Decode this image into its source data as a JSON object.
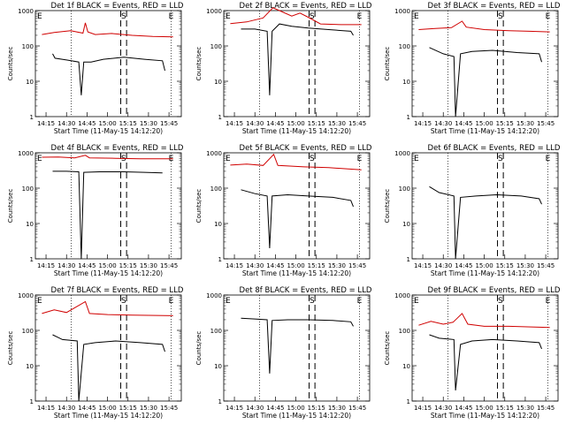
{
  "chart_data": [
    {
      "type": "line",
      "title": "Det 1f BLACK = Events, RED = LLD",
      "xlabel": "Start Time (11-May-15 14:12:20)",
      "ylabel": "Counts/sec",
      "yscale": "log",
      "ylim": [
        1,
        1000
      ],
      "xlim": [
        "14:15",
        "15:50"
      ],
      "x_ticks": [
        "14:15",
        "14:30",
        "14:45",
        "15:00",
        "15:15",
        "15:30",
        "15:45"
      ],
      "y_ticks": [
        "1",
        "10",
        "100",
        "1000"
      ],
      "markers": [
        "E",
        "S",
        "E"
      ],
      "series": [
        {
          "name": "LLD",
          "color": "#d00000",
          "values": [
            [
              14.2,
              210
            ],
            [
              14.35,
              240
            ],
            [
              14.55,
              270
            ],
            [
              14.7,
              230
            ],
            [
              14.73,
              450
            ],
            [
              14.76,
              250
            ],
            [
              14.85,
              210
            ],
            [
              15.05,
              225
            ],
            [
              15.3,
              200
            ],
            [
              15.55,
              185
            ],
            [
              15.8,
              180
            ]
          ]
        },
        {
          "name": "Events",
          "color": "#000000",
          "values": [
            [
              14.33,
              60
            ],
            [
              14.36,
              45
            ],
            [
              14.5,
              40
            ],
            [
              14.65,
              35
            ],
            [
              14.68,
              4
            ],
            [
              14.71,
              35
            ],
            [
              14.8,
              35
            ],
            [
              14.95,
              42
            ],
            [
              15.2,
              48
            ],
            [
              15.45,
              42
            ],
            [
              15.67,
              38
            ],
            [
              15.7,
              20
            ]
          ]
        }
      ]
    },
    {
      "type": "line",
      "title": "Det 2f BLACK = Events, RED = LLD",
      "xlabel": "Start Time (11-May-15 14:12:20)",
      "ylabel": "Counts/sec",
      "yscale": "log",
      "ylim": [
        1,
        1000
      ],
      "xlim": [
        "14:15",
        "15:50"
      ],
      "x_ticks": [
        "14:15",
        "14:30",
        "14:45",
        "15:00",
        "15:15",
        "15:30",
        "15:45"
      ],
      "y_ticks": [
        "1",
        "10",
        "100",
        "1000"
      ],
      "markers": [
        "E",
        "S",
        "E"
      ],
      "series": [
        {
          "name": "LLD",
          "color": "#d00000",
          "values": [
            [
              14.2,
              430
            ],
            [
              14.4,
              480
            ],
            [
              14.6,
              620
            ],
            [
              14.72,
              1200
            ],
            [
              14.8,
              1000
            ],
            [
              14.95,
              700
            ],
            [
              15.05,
              850
            ],
            [
              15.15,
              650
            ],
            [
              15.3,
              420
            ],
            [
              15.55,
              400
            ],
            [
              15.8,
              400
            ]
          ]
        },
        {
          "name": "Events",
          "color": "#000000",
          "values": [
            [
              14.33,
              300
            ],
            [
              14.5,
              300
            ],
            [
              14.65,
              260
            ],
            [
              14.68,
              4
            ],
            [
              14.71,
              260
            ],
            [
              14.8,
              420
            ],
            [
              14.95,
              360
            ],
            [
              15.15,
              320
            ],
            [
              15.4,
              290
            ],
            [
              15.67,
              260
            ],
            [
              15.7,
              200
            ]
          ]
        }
      ]
    },
    {
      "type": "line",
      "title": "Det 3f BLACK = Events, RED = LLD",
      "xlabel": "Start Time (11-May-15 14:12:20)",
      "ylabel": "Counts/sec",
      "yscale": "log",
      "ylim": [
        1,
        1000
      ],
      "xlim": [
        "14:15",
        "15:50"
      ],
      "x_ticks": [
        "14:15",
        "14:30",
        "14:45",
        "15:00",
        "15:15",
        "15:30",
        "15:45"
      ],
      "y_ticks": [
        "1",
        "10",
        "100",
        "1000"
      ],
      "markers": [
        "E",
        "S",
        "E"
      ],
      "series": [
        {
          "name": "LLD",
          "color": "#d00000",
          "values": [
            [
              14.2,
              290
            ],
            [
              14.4,
              310
            ],
            [
              14.6,
              330
            ],
            [
              14.73,
              500
            ],
            [
              14.78,
              340
            ],
            [
              15.0,
              290
            ],
            [
              15.3,
              270
            ],
            [
              15.55,
              260
            ],
            [
              15.8,
              250
            ]
          ]
        },
        {
          "name": "Events",
          "color": "#000000",
          "values": [
            [
              14.33,
              90
            ],
            [
              14.5,
              60
            ],
            [
              14.63,
              50
            ],
            [
              14.65,
              1
            ],
            [
              14.71,
              60
            ],
            [
              14.85,
              70
            ],
            [
              15.1,
              75
            ],
            [
              15.4,
              65
            ],
            [
              15.67,
              60
            ],
            [
              15.7,
              35
            ]
          ]
        }
      ]
    },
    {
      "type": "line",
      "title": "Det 4f BLACK = Events, RED = LLD",
      "xlabel": "Start Time (11-May-15 14:12:20)",
      "ylabel": "Counts/sec",
      "yscale": "log",
      "ylim": [
        1,
        1000
      ],
      "xlim": [
        "14:15",
        "15:50"
      ],
      "x_ticks": [
        "14:15",
        "14:30",
        "14:45",
        "15:00",
        "15:15",
        "15:30",
        "15:45"
      ],
      "y_ticks": [
        "1",
        "10",
        "100",
        "1000"
      ],
      "markers": [
        "E",
        "S",
        "E"
      ],
      "series": [
        {
          "name": "LLD",
          "color": "#d00000",
          "values": [
            [
              14.2,
              750
            ],
            [
              14.4,
              760
            ],
            [
              14.6,
              720
            ],
            [
              14.73,
              850
            ],
            [
              14.78,
              720
            ],
            [
              15.1,
              700
            ],
            [
              15.4,
              680
            ],
            [
              15.8,
              680
            ]
          ]
        },
        {
          "name": "Events",
          "color": "#000000",
          "values": [
            [
              14.33,
              300
            ],
            [
              14.5,
              300
            ],
            [
              14.65,
              290
            ],
            [
              14.68,
              1
            ],
            [
              14.71,
              280
            ],
            [
              14.9,
              290
            ],
            [
              15.2,
              290
            ],
            [
              15.45,
              280
            ],
            [
              15.67,
              270
            ]
          ]
        }
      ]
    },
    {
      "type": "line",
      "title": "Det 5f BLACK = Events, RED = LLD",
      "xlabel": "Start Time (11-May-15 14:12:20)",
      "ylabel": "Counts/sec",
      "yscale": "log",
      "ylim": [
        1,
        1000
      ],
      "xlim": [
        "14:15",
        "15:50"
      ],
      "x_ticks": [
        "14:15",
        "14:30",
        "14:45",
        "15:00",
        "15:15",
        "15:30",
        "15:45"
      ],
      "y_ticks": [
        "1",
        "10",
        "100",
        "1000"
      ],
      "markers": [
        "E",
        "S",
        "E"
      ],
      "series": [
        {
          "name": "LLD",
          "color": "#d00000",
          "values": [
            [
              14.2,
              450
            ],
            [
              14.4,
              480
            ],
            [
              14.6,
              440
            ],
            [
              14.73,
              900
            ],
            [
              14.78,
              440
            ],
            [
              15.1,
              400
            ],
            [
              15.4,
              380
            ],
            [
              15.8,
              330
            ]
          ]
        },
        {
          "name": "Events",
          "color": "#000000",
          "values": [
            [
              14.33,
              90
            ],
            [
              14.5,
              70
            ],
            [
              14.65,
              60
            ],
            [
              14.68,
              2
            ],
            [
              14.71,
              60
            ],
            [
              14.9,
              65
            ],
            [
              15.15,
              60
            ],
            [
              15.45,
              55
            ],
            [
              15.67,
              45
            ],
            [
              15.7,
              30
            ]
          ]
        }
      ]
    },
    {
      "type": "line",
      "title": "Det 6f BLACK = Events, RED = LLD",
      "xlabel": "Start Time (11-May-15 14:12:20)",
      "ylabel": "Counts/sec",
      "yscale": "log",
      "ylim": [
        1,
        1000
      ],
      "xlim": [
        "14:15",
        "15:50"
      ],
      "x_ticks": [
        "14:15",
        "14:30",
        "14:45",
        "15:00",
        "15:15",
        "15:30",
        "15:45"
      ],
      "y_ticks": [
        "1",
        "10",
        "100",
        "1000"
      ],
      "markers": [
        "E",
        "S",
        "E"
      ],
      "series": [
        {
          "name": "Events",
          "color": "#000000",
          "values": [
            [
              14.33,
              110
            ],
            [
              14.45,
              75
            ],
            [
              14.63,
              60
            ],
            [
              14.65,
              1
            ],
            [
              14.71,
              55
            ],
            [
              14.9,
              60
            ],
            [
              15.15,
              65
            ],
            [
              15.45,
              60
            ],
            [
              15.67,
              50
            ],
            [
              15.7,
              35
            ]
          ]
        }
      ]
    },
    {
      "type": "line",
      "title": "Det 7f BLACK = Events, RED = LLD",
      "xlabel": "Start Time (11-May-15 14:12:20)",
      "ylabel": "Counts/sec",
      "yscale": "log",
      "ylim": [
        1,
        1000
      ],
      "xlim": [
        "14:15",
        "15:50"
      ],
      "x_ticks": [
        "14:15",
        "14:30",
        "14:45",
        "15:00",
        "15:15",
        "15:30",
        "15:45"
      ],
      "y_ticks": [
        "1",
        "10",
        "100",
        "1000"
      ],
      "markers": [
        "E",
        "S",
        "E"
      ],
      "series": [
        {
          "name": "LLD",
          "color": "#d00000",
          "values": [
            [
              14.2,
              300
            ],
            [
              14.35,
              380
            ],
            [
              14.5,
              320
            ],
            [
              14.73,
              650
            ],
            [
              14.78,
              300
            ],
            [
              15.0,
              280
            ],
            [
              15.3,
              270
            ],
            [
              15.8,
              260
            ]
          ]
        },
        {
          "name": "Events",
          "color": "#000000",
          "values": [
            [
              14.33,
              75
            ],
            [
              14.45,
              55
            ],
            [
              14.63,
              50
            ],
            [
              14.65,
              1
            ],
            [
              14.71,
              40
            ],
            [
              14.85,
              45
            ],
            [
              15.1,
              50
            ],
            [
              15.4,
              45
            ],
            [
              15.67,
              40
            ],
            [
              15.7,
              25
            ]
          ]
        }
      ]
    },
    {
      "type": "line",
      "title": "Det 8f BLACK = Events, RED = LLD",
      "xlabel": "Start Time (11-May-15 14:12:20)",
      "ylabel": "Counts/sec",
      "yscale": "log",
      "ylim": [
        1,
        1000
      ],
      "xlim": [
        "14:15",
        "15:50"
      ],
      "x_ticks": [
        "14:15",
        "14:30",
        "14:45",
        "15:00",
        "15:15",
        "15:30",
        "15:45"
      ],
      "y_ticks": [
        "1",
        "10",
        "100",
        "1000"
      ],
      "markers": [
        "E",
        "S",
        "E"
      ],
      "series": [
        {
          "name": "Events",
          "color": "#000000",
          "values": [
            [
              14.33,
              220
            ],
            [
              14.5,
              210
            ],
            [
              14.65,
              200
            ],
            [
              14.68,
              6
            ],
            [
              14.71,
              190
            ],
            [
              14.9,
              200
            ],
            [
              15.15,
              200
            ],
            [
              15.45,
              190
            ],
            [
              15.67,
              175
            ],
            [
              15.7,
              130
            ]
          ]
        }
      ]
    },
    {
      "type": "line",
      "title": "Det 9f BLACK = Events, RED = LLD",
      "xlabel": "Start Time (11-May-15 14:12:20)",
      "ylabel": "Counts/sec",
      "yscale": "log",
      "ylim": [
        1,
        1000
      ],
      "xlim": [
        "14:15",
        "15:50"
      ],
      "x_ticks": [
        "14:15",
        "14:30",
        "14:45",
        "15:00",
        "15:15",
        "15:30",
        "15:45"
      ],
      "y_ticks": [
        "1",
        "10",
        "100",
        "1000"
      ],
      "markers": [
        "E",
        "S",
        "E"
      ],
      "series": [
        {
          "name": "LLD",
          "color": "#d00000",
          "values": [
            [
              14.2,
              140
            ],
            [
              14.35,
              180
            ],
            [
              14.5,
              150
            ],
            [
              14.62,
              170
            ],
            [
              14.73,
              300
            ],
            [
              14.8,
              150
            ],
            [
              15.0,
              130
            ],
            [
              15.3,
              130
            ],
            [
              15.8,
              120
            ]
          ]
        },
        {
          "name": "Events",
          "color": "#000000",
          "values": [
            [
              14.33,
              75
            ],
            [
              14.45,
              60
            ],
            [
              14.63,
              55
            ],
            [
              14.65,
              2
            ],
            [
              14.71,
              40
            ],
            [
              14.85,
              50
            ],
            [
              15.1,
              55
            ],
            [
              15.4,
              50
            ],
            [
              15.67,
              45
            ],
            [
              15.7,
              30
            ]
          ]
        }
      ]
    }
  ]
}
